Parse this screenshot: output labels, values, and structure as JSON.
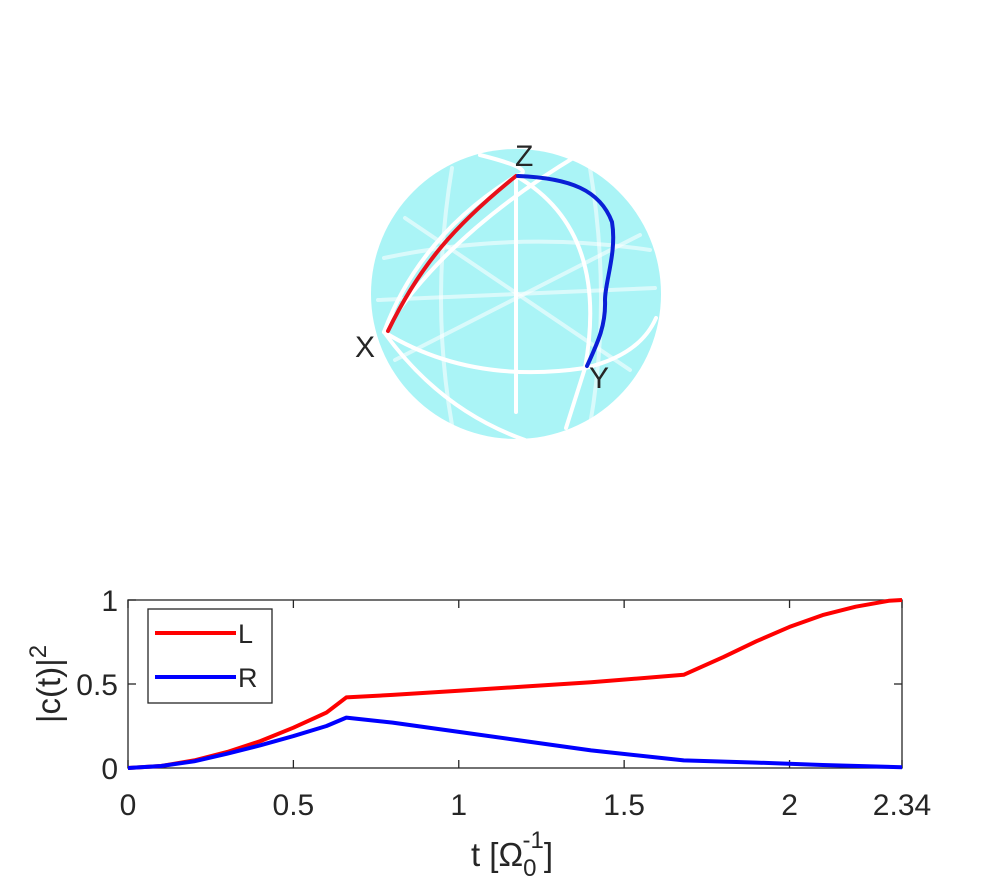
{
  "sphere": {
    "labels": {
      "x": "X",
      "y": "Y",
      "z": "Z"
    },
    "fill_color": "#aaf4f6",
    "grid_color": "#ffffff",
    "path_colors": {
      "L": "#e8101a",
      "R": "#0a1fd6"
    }
  },
  "chart_data": {
    "type": "line",
    "xlabel_main": "t [Ω",
    "xlabel_sup": "-1",
    "xlabel_sub": "0",
    "xlabel_close": "]",
    "ylabel_main": "|c(t)|",
    "ylabel_sup": "2",
    "xlim": [
      0,
      2.34
    ],
    "ylim": [
      0,
      1
    ],
    "xticks": [
      0,
      0.5,
      1,
      1.5,
      2,
      2.34
    ],
    "xtick_labels": [
      "0",
      "0.5",
      "1",
      "1.5",
      "2",
      "2.34"
    ],
    "yticks": [
      0,
      0.5,
      1
    ],
    "ytick_labels": [
      "0",
      "0.5",
      "1"
    ],
    "legend_position": "top-left",
    "series": [
      {
        "name": "L",
        "color": "#ff0000",
        "x": [
          0,
          0.1,
          0.2,
          0.3,
          0.4,
          0.5,
          0.6,
          0.66,
          0.8,
          1.0,
          1.2,
          1.4,
          1.68,
          1.8,
          1.9,
          2.0,
          2.1,
          2.2,
          2.3,
          2.34
        ],
        "y": [
          0,
          0.012,
          0.045,
          0.095,
          0.16,
          0.24,
          0.33,
          0.42,
          0.435,
          0.46,
          0.485,
          0.51,
          0.555,
          0.66,
          0.755,
          0.84,
          0.91,
          0.96,
          0.995,
          1.0
        ]
      },
      {
        "name": "R",
        "color": "#0000ff",
        "x": [
          0,
          0.1,
          0.2,
          0.3,
          0.4,
          0.5,
          0.6,
          0.66,
          0.8,
          1.0,
          1.2,
          1.4,
          1.68,
          1.9,
          2.1,
          2.34
        ],
        "y": [
          0,
          0.012,
          0.04,
          0.085,
          0.135,
          0.19,
          0.25,
          0.3,
          0.27,
          0.215,
          0.16,
          0.105,
          0.045,
          0.032,
          0.018,
          0.005
        ]
      }
    ]
  }
}
